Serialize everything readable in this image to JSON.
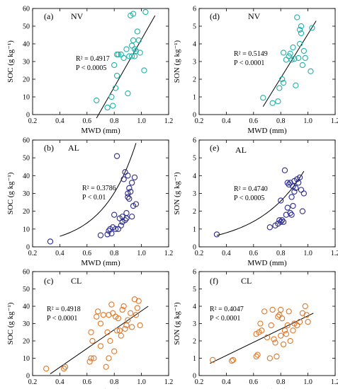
{
  "chart_data": [
    {
      "type": "scatter",
      "panel_label": "(a)",
      "land_use": "NV",
      "r2_text": "R² = 0.4917",
      "p_text": "P < 0.0005",
      "xlabel": "MWD (mm)",
      "ylabel": "SOC (g kg⁻¹)",
      "xlim": [
        0.2,
        1.2
      ],
      "ylim": [
        0,
        60
      ],
      "xticks": [
        "0.2",
        "0.4",
        "0.6",
        "0.8",
        "1.0",
        "1.2"
      ],
      "yticks": [
        "0",
        "10",
        "20",
        "30",
        "40",
        "50",
        "60"
      ],
      "color": "#20b2aa",
      "fit": {
        "kind": "linear",
        "x": [
          0.67,
          1.1
        ],
        "y": [
          -2,
          56
        ]
      },
      "x": [
        0.67,
        0.75,
        0.78,
        0.79,
        0.8,
        0.81,
        0.82,
        0.82,
        0.83,
        0.85,
        0.87,
        0.89,
        0.9,
        0.91,
        0.92,
        0.93,
        0.93,
        0.94,
        0.94,
        0.95,
        0.95,
        0.96,
        0.97,
        0.98,
        0.99,
        1.02,
        1.03
      ],
      "y": [
        8,
        4,
        10,
        5,
        28,
        15,
        34,
        22,
        34,
        34,
        32,
        37,
        12,
        33,
        56,
        33,
        39,
        57,
        42,
        33,
        37,
        36,
        47,
        42,
        35,
        25,
        58
      ]
    },
    {
      "type": "scatter",
      "panel_label": "(d)",
      "land_use": "NV",
      "r2_text": "R² = 0.5149",
      "p_text": "P < 0.0001",
      "xlabel": "MWD (mm)",
      "ylabel": "SON (g kg⁻¹)",
      "xlim": [
        0.2,
        1.2
      ],
      "ylim": [
        0,
        6
      ],
      "xticks": [
        "0.2",
        "0.4",
        "0.6",
        "0.8",
        "1.0",
        "1.2"
      ],
      "yticks": [
        "0",
        "1",
        "2",
        "3",
        "4",
        "5",
        "6"
      ],
      "color": "#20b2aa",
      "fit": {
        "kind": "linear",
        "x": [
          0.67,
          1.06
        ],
        "y": [
          0.45,
          5.3
        ]
      },
      "x": [
        0.67,
        0.74,
        0.78,
        0.79,
        0.81,
        0.82,
        0.82,
        0.84,
        0.86,
        0.87,
        0.88,
        0.89,
        0.9,
        0.91,
        0.92,
        0.93,
        0.94,
        0.94,
        0.95,
        0.95,
        0.96,
        0.97,
        0.98,
        1.02,
        1.03
      ],
      "y": [
        0.95,
        0.65,
        0.75,
        1.5,
        2.0,
        1.8,
        3.5,
        3.1,
        3.3,
        3.45,
        3.1,
        3.8,
        3.15,
        1.65,
        5.5,
        3.2,
        4.0,
        4.8,
        4.6,
        5.0,
        2.8,
        3.6,
        3.2,
        2.45,
        4.9
      ]
    },
    {
      "type": "scatter",
      "panel_label": "(b)",
      "land_use": "AL",
      "r2_text": "R² = 0.3786",
      "p_text": "P < 0.01",
      "xlabel": "MWD (mm)",
      "ylabel": "SOC (g kg⁻¹)",
      "xlim": [
        0.2,
        1.2
      ],
      "ylim": [
        0,
        60
      ],
      "xticks": [
        "0.2",
        "0.4",
        "0.6",
        "0.8",
        "1.0",
        "1.2"
      ],
      "yticks": [
        "0",
        "10",
        "20",
        "30",
        "40",
        "50",
        "60"
      ],
      "color": "#2b2b8c",
      "fit": {
        "kind": "exponential",
        "a": 1.16,
        "b": 4.08,
        "x0": 0.4,
        "x1": 0.96
      },
      "x": [
        0.33,
        0.7,
        0.75,
        0.76,
        0.77,
        0.78,
        0.79,
        0.8,
        0.81,
        0.82,
        0.83,
        0.84,
        0.85,
        0.86,
        0.86,
        0.87,
        0.88,
        0.88,
        0.89,
        0.89,
        0.9,
        0.9,
        0.9,
        0.91,
        0.91,
        0.92,
        0.93,
        0.93,
        0.94,
        0.95,
        0.96
      ],
      "y": [
        3,
        6.5,
        7,
        9,
        10,
        7.5,
        11,
        18,
        10,
        51,
        10,
        16,
        12,
        14,
        17,
        38,
        42,
        15,
        16,
        19,
        40,
        28,
        30,
        27,
        33,
        31,
        17,
        36,
        23,
        39,
        24
      ]
    },
    {
      "type": "scatter",
      "panel_label": "(e)",
      "land_use": "AL",
      "r2_text": "R² = 0.4740",
      "p_text": "P < 0.0005",
      "xlabel": "MWD (mm)",
      "ylabel": "SON (g kg⁻¹)",
      "xlim": [
        0.2,
        1.2
      ],
      "ylim": [
        0,
        6
      ],
      "xticks": [
        "0.2",
        "0.4",
        "0.6",
        "0.8",
        "1.0",
        "1.2"
      ],
      "yticks": [
        "0",
        "1",
        "2",
        "3",
        "4",
        "5",
        "6"
      ],
      "color": "#2b2b8c",
      "fit": {
        "kind": "exponential",
        "a": 0.243,
        "b": 2.95,
        "x0": 0.33,
        "x1": 0.97
      },
      "x": [
        0.33,
        0.72,
        0.76,
        0.78,
        0.79,
        0.8,
        0.8,
        0.81,
        0.82,
        0.83,
        0.84,
        0.85,
        0.85,
        0.86,
        0.87,
        0.87,
        0.88,
        0.88,
        0.89,
        0.89,
        0.9,
        0.9,
        0.91,
        0.92,
        0.93,
        0.94,
        0.95,
        0.96,
        0.97
      ],
      "y": [
        0.7,
        1.1,
        1.2,
        1.3,
        1.5,
        1.4,
        2.6,
        1.5,
        1.4,
        4.3,
        1.8,
        2.2,
        3.6,
        3.5,
        1.9,
        3.6,
        1.8,
        2.8,
        3.4,
        2.3,
        3.7,
        3.1,
        3.3,
        3.8,
        3.6,
        3.9,
        3.2,
        2.0,
        3.0
      ]
    },
    {
      "type": "scatter",
      "panel_label": "(c)",
      "land_use": "CL",
      "r2_text": "R² = 0.4918",
      "p_text": "P < 0.0001",
      "xlabel": "MWD (mm)",
      "ylabel": "SOC (g kg⁻¹)",
      "xlim": [
        0.2,
        1.2
      ],
      "ylim": [
        0,
        60
      ],
      "xticks": [
        "0.2",
        "0.4",
        "0.6",
        "0.8",
        "1.0",
        "1.2"
      ],
      "yticks": [
        "0",
        "10",
        "20",
        "30",
        "40",
        "50",
        "60"
      ],
      "color": "#e0782a",
      "fit": {
        "kind": "linear",
        "x": [
          0.33,
          1.05
        ],
        "y": [
          1,
          40
        ]
      },
      "x": [
        0.3,
        0.43,
        0.44,
        0.62,
        0.63,
        0.63,
        0.64,
        0.65,
        0.67,
        0.68,
        0.7,
        0.7,
        0.72,
        0.74,
        0.75,
        0.76,
        0.76,
        0.77,
        0.78,
        0.79,
        0.8,
        0.81,
        0.82,
        0.83,
        0.84,
        0.85,
        0.86,
        0.87,
        0.88,
        0.89,
        0.9,
        0.92,
        0.93,
        0.95,
        0.96,
        0.97,
        0.98,
        0.99
      ],
      "y": [
        4,
        4,
        5,
        8,
        25,
        10,
        20,
        10,
        34,
        37,
        30,
        17,
        35,
        5,
        25,
        10,
        35,
        20,
        41,
        36,
        14,
        34,
        26,
        33,
        26,
        23,
        38,
        40,
        27,
        29,
        32,
        36,
        28,
        44,
        35,
        39,
        43,
        29
      ]
    },
    {
      "type": "scatter",
      "panel_label": "(f)",
      "land_use": "CL",
      "r2_text": "R² = 0.4047",
      "p_text": "P < 0.0001",
      "xlabel": "MWD (mm)",
      "ylabel": "SON (g kg⁻¹)",
      "xlim": [
        0.2,
        1.2
      ],
      "ylim": [
        0,
        6
      ],
      "xticks": [
        "0.2",
        "0.4",
        "0.6",
        "0.8",
        "1.0",
        "1.2"
      ],
      "yticks": [
        "0",
        "1",
        "2",
        "3",
        "4",
        "5",
        "6"
      ],
      "color": "#e0782a",
      "fit": {
        "kind": "linear",
        "x": [
          0.28,
          1.04
        ],
        "y": [
          0.7,
          3.6
        ]
      },
      "x": [
        0.3,
        0.44,
        0.45,
        0.62,
        0.62,
        0.63,
        0.64,
        0.65,
        0.66,
        0.68,
        0.7,
        0.72,
        0.73,
        0.74,
        0.75,
        0.76,
        0.77,
        0.78,
        0.79,
        0.8,
        0.8,
        0.81,
        0.82,
        0.83,
        0.84,
        0.85,
        0.86,
        0.87,
        0.89,
        0.9,
        0.92,
        0.94,
        0.96,
        0.98,
        0.99,
        1.0
      ],
      "y": [
        0.9,
        0.85,
        0.9,
        1.1,
        2.4,
        1.2,
        2.5,
        3.0,
        2.6,
        3.7,
        2.2,
        1.0,
        2.9,
        3.8,
        2.1,
        1.9,
        1.1,
        3.4,
        3.5,
        3.8,
        2.3,
        3.3,
        1.8,
        2.6,
        2.4,
        2.9,
        3.7,
        2.0,
        2.6,
        3.0,
        2.9,
        3.1,
        3.6,
        4.0,
        3.5,
        3.1
      ]
    }
  ]
}
